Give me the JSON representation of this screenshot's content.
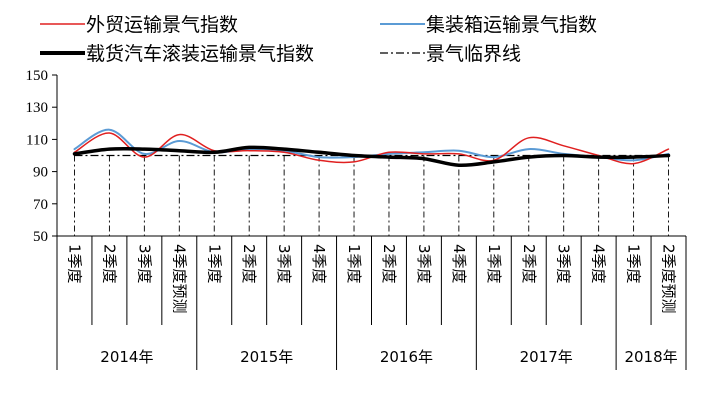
{
  "chart_data": {
    "type": "line",
    "title": "",
    "xlabel": "",
    "ylabel": "",
    "ylim": [
      50,
      150
    ],
    "yticks": [
      50,
      70,
      90,
      110,
      130,
      150
    ],
    "grid": false,
    "legend_position": "top",
    "categories": [
      "1季度",
      "2季度",
      "3季度",
      "4季度预测",
      "1季度",
      "2季度",
      "3季度",
      "4季度",
      "1季度",
      "2季度",
      "3季度",
      "4季度",
      "1季度",
      "2季度",
      "3季度",
      "4季度",
      "1季度",
      "2季度预测"
    ],
    "year_groups": [
      {
        "label": "2014年",
        "span": 4
      },
      {
        "label": "2015年",
        "span": 4
      },
      {
        "label": "2016年",
        "span": 4
      },
      {
        "label": "2017年",
        "span": 4
      },
      {
        "label": "2018年",
        "span": 2
      }
    ],
    "series": [
      {
        "name": "外贸运输景气指数",
        "color": "#e02020",
        "style": "solid",
        "values": [
          102,
          114,
          99,
          113,
          103,
          103,
          102,
          97,
          96,
          102,
          101,
          101,
          97,
          111,
          106,
          100,
          95,
          104
        ]
      },
      {
        "name": "集装箱运输景气指数",
        "color": "#5b9bd5",
        "style": "solid",
        "values": [
          104,
          116,
          101,
          109,
          102,
          104,
          103,
          99,
          99,
          101,
          102,
          103,
          99,
          104,
          101,
          99,
          97,
          101
        ]
      },
      {
        "name": "载货汽车滚装运输景气指数",
        "color": "#000000",
        "style": "thick",
        "values": [
          101,
          104,
          104,
          103,
          102,
          105,
          104,
          102,
          100,
          99,
          98,
          94,
          96,
          99,
          100,
          99,
          99,
          100
        ]
      },
      {
        "name": "景气临界线",
        "color": "#000000",
        "style": "dashdot",
        "values": [
          100,
          100,
          100,
          100,
          100,
          100,
          100,
          100,
          100,
          100,
          100,
          100,
          100,
          100,
          100,
          100,
          100,
          100
        ]
      }
    ]
  }
}
